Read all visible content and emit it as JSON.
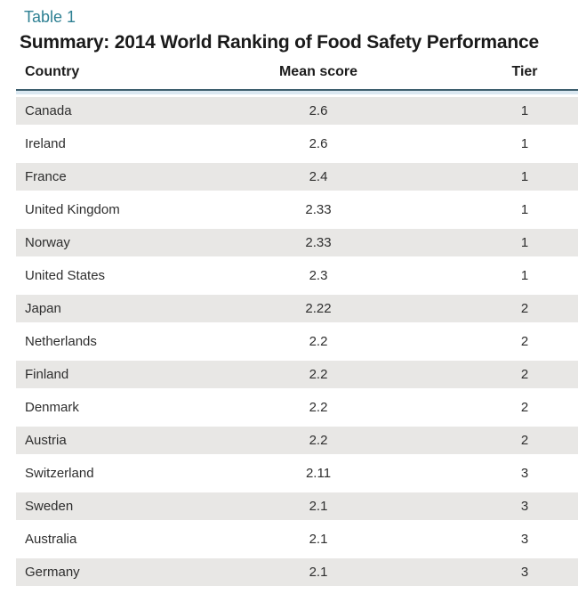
{
  "page": {
    "table_label": "Table 1",
    "title": "Summary: 2014 World Ranking of Food Safety Performance"
  },
  "table": {
    "columns": [
      {
        "key": "country",
        "label": "Country"
      },
      {
        "key": "mean_score",
        "label": "Mean score"
      },
      {
        "key": "tier",
        "label": "Tier"
      }
    ],
    "rows": [
      {
        "country": "Canada",
        "mean_score": "2.6",
        "tier": "1"
      },
      {
        "country": "Ireland",
        "mean_score": "2.6",
        "tier": "1"
      },
      {
        "country": "France",
        "mean_score": "2.4",
        "tier": "1"
      },
      {
        "country": "United Kingdom",
        "mean_score": "2.33",
        "tier": "1"
      },
      {
        "country": "Norway",
        "mean_score": "2.33",
        "tier": "1"
      },
      {
        "country": "United States",
        "mean_score": "2.3",
        "tier": "1"
      },
      {
        "country": "Japan",
        "mean_score": "2.22",
        "tier": "2"
      },
      {
        "country": "Netherlands",
        "mean_score": "2.2",
        "tier": "2"
      },
      {
        "country": "Finland",
        "mean_score": "2.2",
        "tier": "2"
      },
      {
        "country": "Denmark",
        "mean_score": "2.2",
        "tier": "2"
      },
      {
        "country": "Austria",
        "mean_score": "2.2",
        "tier": "2"
      },
      {
        "country": "Switzerland",
        "mean_score": "2.11",
        "tier": "3"
      },
      {
        "country": "Sweden",
        "mean_score": "2.1",
        "tier": "3"
      },
      {
        "country": "Australia",
        "mean_score": "2.1",
        "tier": "3"
      },
      {
        "country": "Germany",
        "mean_score": "2.1",
        "tier": "3"
      }
    ]
  },
  "colors": {
    "table_label": "#2e8093",
    "title_text": "#1a1a1a",
    "header_rule": "#3e5f6e",
    "header_accent": "#dbe8f1",
    "row_stripe": "#e8e7e5",
    "row_text": "#2e2e2e"
  },
  "chart_data": {
    "type": "table",
    "title": "Summary: 2014 World Ranking of Food Safety Performance",
    "columns": [
      "Country",
      "Mean score",
      "Tier"
    ],
    "rows": [
      [
        "Canada",
        2.6,
        1
      ],
      [
        "Ireland",
        2.6,
        1
      ],
      [
        "France",
        2.4,
        1
      ],
      [
        "United Kingdom",
        2.33,
        1
      ],
      [
        "Norway",
        2.33,
        1
      ],
      [
        "United States",
        2.3,
        1
      ],
      [
        "Japan",
        2.22,
        2
      ],
      [
        "Netherlands",
        2.2,
        2
      ],
      [
        "Finland",
        2.2,
        2
      ],
      [
        "Denmark",
        2.2,
        2
      ],
      [
        "Austria",
        2.2,
        2
      ],
      [
        "Switzerland",
        2.11,
        3
      ],
      [
        "Sweden",
        2.1,
        3
      ],
      [
        "Australia",
        2.1,
        3
      ],
      [
        "Germany",
        2.1,
        3
      ]
    ]
  }
}
